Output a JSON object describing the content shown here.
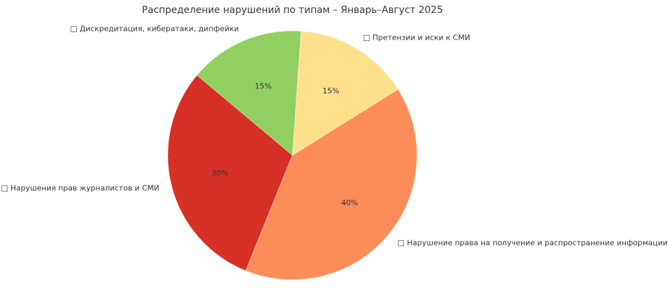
{
  "chart_data": {
    "type": "pie",
    "title": "Распределение нарушений по типам – Январь–Август 2025",
    "categories": [
      "□ Претензии и иски к СМИ",
      "□ Дискредитация, кибератаки, дипфейки",
      "□ Нарушения прав журналистов и СМИ",
      "□ Нарушение права на получение и распространение информации"
    ],
    "values": [
      15,
      15,
      30,
      40
    ],
    "value_labels": [
      "15%",
      "15%",
      "30%",
      "40%"
    ],
    "colors": [
      "#fee08b",
      "#91cf60",
      "#d73027",
      "#fc8d59"
    ]
  }
}
